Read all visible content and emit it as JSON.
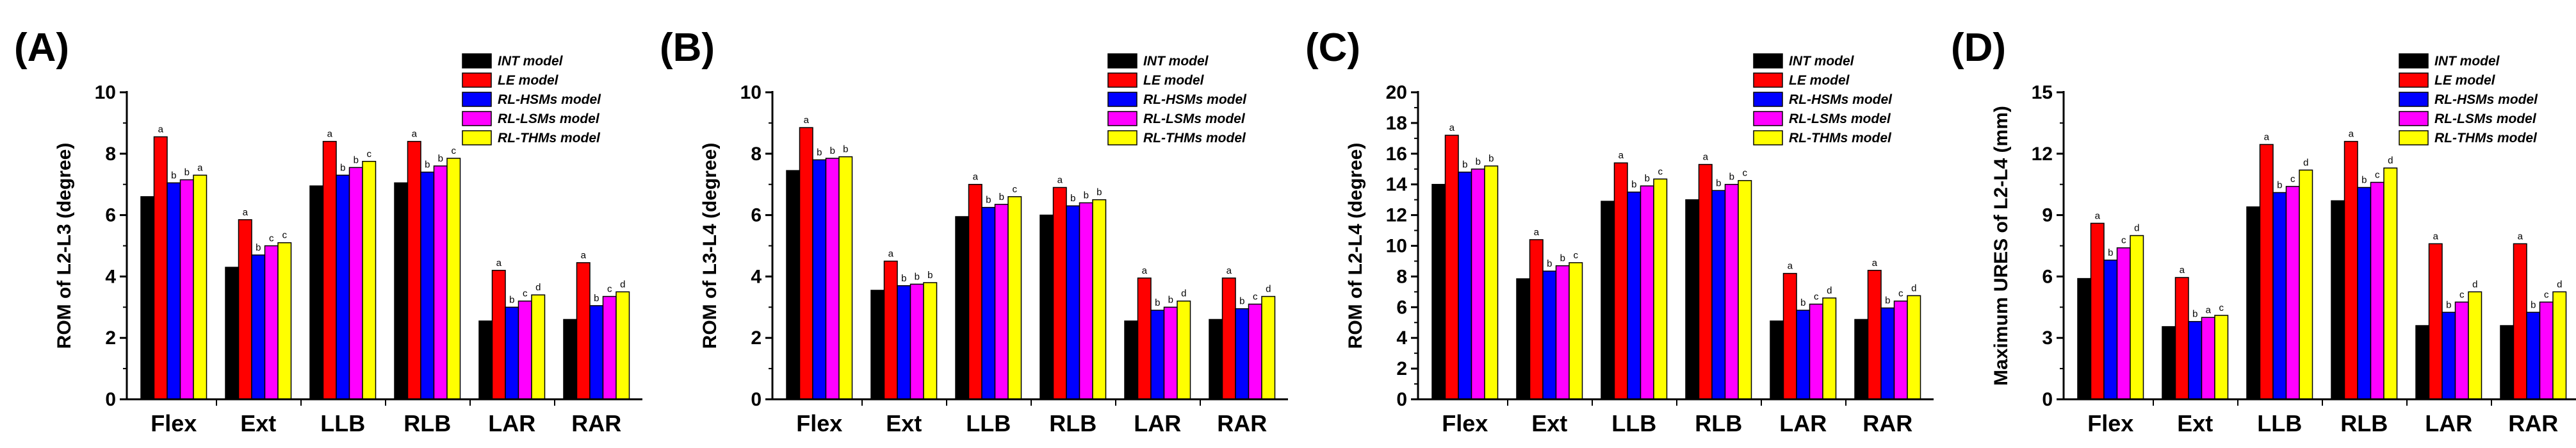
{
  "legend": [
    "INT model",
    "LE model",
    "RL-HSMs model",
    "RL-LSMs model",
    "RL-THMs model"
  ],
  "colors": [
    "#000000",
    "#ff0000",
    "#0000ff",
    "#ff00ff",
    "#ffff00"
  ],
  "chart_data": [
    {
      "type": "bar",
      "panel": "(A)",
      "ylabel": "ROM of L2-L3 (degree)",
      "ylim": [
        0,
        10
      ],
      "ytick_step": 2,
      "categories": [
        "Flex",
        "Ext",
        "LLB",
        "RLB",
        "LAR",
        "RAR"
      ],
      "series": [
        {
          "name": "INT model",
          "values": [
            6.6,
            4.3,
            6.95,
            7.05,
            2.55,
            2.6
          ]
        },
        {
          "name": "LE model",
          "values": [
            8.55,
            5.85,
            8.4,
            8.4,
            4.2,
            4.45
          ]
        },
        {
          "name": "RL-HSMs model",
          "values": [
            7.05,
            4.7,
            7.3,
            7.4,
            3.0,
            3.05
          ]
        },
        {
          "name": "RL-LSMs model",
          "values": [
            7.15,
            5.0,
            7.55,
            7.6,
            3.2,
            3.35
          ]
        },
        {
          "name": "RL-THMs model",
          "values": [
            7.3,
            5.1,
            7.75,
            7.85,
            3.4,
            3.5
          ]
        }
      ],
      "significance": [
        [
          "",
          "a",
          "b",
          "b",
          "a"
        ],
        [
          "",
          "a",
          "b",
          "c",
          "c"
        ],
        [
          "",
          "a",
          "b",
          "b",
          "c"
        ],
        [
          "",
          "a",
          "b",
          "b",
          "c"
        ],
        [
          "",
          "a",
          "b",
          "c",
          "d"
        ],
        [
          "",
          "a",
          "b",
          "c",
          "d"
        ]
      ]
    },
    {
      "type": "bar",
      "panel": "(B)",
      "ylabel": "ROM of L3-L4 (degree)",
      "ylim": [
        0,
        10
      ],
      "ytick_step": 2,
      "categories": [
        "Flex",
        "Ext",
        "LLB",
        "RLB",
        "LAR",
        "RAR"
      ],
      "series": [
        {
          "name": "INT model",
          "values": [
            7.45,
            3.55,
            5.95,
            6.0,
            2.55,
            2.6
          ]
        },
        {
          "name": "LE model",
          "values": [
            8.85,
            4.5,
            7.0,
            6.9,
            3.95,
            3.95
          ]
        },
        {
          "name": "RL-HSMs model",
          "values": [
            7.8,
            3.7,
            6.25,
            6.3,
            2.9,
            2.95
          ]
        },
        {
          "name": "RL-LSMs model",
          "values": [
            7.85,
            3.75,
            6.35,
            6.4,
            3.0,
            3.1
          ]
        },
        {
          "name": "RL-THMs model",
          "values": [
            7.9,
            3.8,
            6.6,
            6.5,
            3.2,
            3.35
          ]
        }
      ],
      "significance": [
        [
          "",
          "a",
          "b",
          "b",
          "b"
        ],
        [
          "",
          "a",
          "b",
          "b",
          "b"
        ],
        [
          "",
          "a",
          "b",
          "b",
          "c"
        ],
        [
          "",
          "a",
          "b",
          "b",
          "b"
        ],
        [
          "",
          "a",
          "b",
          "b",
          "d"
        ],
        [
          "",
          "a",
          "b",
          "c",
          "d"
        ]
      ]
    },
    {
      "type": "bar",
      "panel": "(C)",
      "ylabel": "ROM of L2-L4 (degree)",
      "ylim": [
        0,
        20
      ],
      "ytick_step": 2,
      "categories": [
        "Flex",
        "Ext",
        "LLB",
        "RLB",
        "LAR",
        "RAR"
      ],
      "series": [
        {
          "name": "INT model",
          "values": [
            14.0,
            7.85,
            12.9,
            13.0,
            5.1,
            5.2
          ]
        },
        {
          "name": "LE model",
          "values": [
            17.2,
            10.4,
            15.4,
            15.3,
            8.2,
            8.4
          ]
        },
        {
          "name": "RL-HSMs model",
          "values": [
            14.8,
            8.35,
            13.5,
            13.6,
            5.8,
            5.95
          ]
        },
        {
          "name": "RL-LSMs model",
          "values": [
            15.0,
            8.7,
            13.9,
            14.0,
            6.2,
            6.4
          ]
        },
        {
          "name": "RL-THMs model",
          "values": [
            15.2,
            8.9,
            14.35,
            14.25,
            6.6,
            6.75
          ]
        }
      ],
      "significance": [
        [
          "",
          "a",
          "b",
          "b",
          "b"
        ],
        [
          "",
          "a",
          "b",
          "b",
          "c"
        ],
        [
          "",
          "a",
          "b",
          "b",
          "c"
        ],
        [
          "",
          "a",
          "b",
          "b",
          "c"
        ],
        [
          "",
          "a",
          "b",
          "c",
          "d"
        ],
        [
          "",
          "a",
          "b",
          "c",
          "d"
        ]
      ]
    },
    {
      "type": "bar",
      "panel": "(D)",
      "ylabel": "Maximum URES of L2-L4 (mm)",
      "ylim": [
        0,
        15
      ],
      "ytick_step": 3,
      "categories": [
        "Flex",
        "Ext",
        "LLB",
        "RLB",
        "LAR",
        "RAR"
      ],
      "series": [
        {
          "name": "INT model",
          "values": [
            5.9,
            3.55,
            9.4,
            9.7,
            3.6,
            3.6
          ]
        },
        {
          "name": "LE model",
          "values": [
            8.6,
            5.95,
            12.45,
            12.6,
            7.6,
            7.6
          ]
        },
        {
          "name": "RL-HSMs model",
          "values": [
            6.8,
            3.8,
            10.1,
            10.35,
            4.25,
            4.25
          ]
        },
        {
          "name": "RL-LSMs model",
          "values": [
            7.4,
            4.0,
            10.4,
            10.6,
            4.75,
            4.75
          ]
        },
        {
          "name": "RL-THMs model",
          "values": [
            8.0,
            4.1,
            11.2,
            11.3,
            5.25,
            5.25
          ]
        }
      ],
      "significance": [
        [
          "",
          "a",
          "b",
          "c",
          "d"
        ],
        [
          "",
          "a",
          "b",
          "a",
          "c"
        ],
        [
          "",
          "a",
          "b",
          "c",
          "d"
        ],
        [
          "",
          "a",
          "b",
          "c",
          "d"
        ],
        [
          "",
          "a",
          "b",
          "c",
          "d"
        ],
        [
          "",
          "a",
          "b",
          "c",
          "d"
        ]
      ]
    }
  ]
}
